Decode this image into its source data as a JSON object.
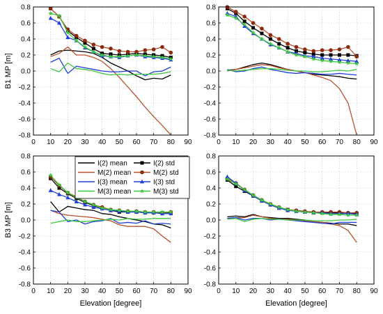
{
  "figure": {
    "legend": [
      {
        "label": "I(2)  mean",
        "color": "#000000",
        "marker": "none"
      },
      {
        "label": "I(2)  std",
        "color": "#000000",
        "marker": "square"
      },
      {
        "label": "M(2) mean",
        "color": "#b5502a",
        "marker": "none"
      },
      {
        "label": "M(2)  std",
        "color": "#8b2a0e",
        "marker": "circle"
      },
      {
        "label": "I(3)  mean",
        "color": "#1f3fd6",
        "marker": "none"
      },
      {
        "label": "I(3)  std",
        "color": "#1f3fd6",
        "marker": "triangle"
      },
      {
        "label": "M(3) mean",
        "color": "#3fc83f",
        "marker": "none"
      },
      {
        "label": "M(3)  std",
        "color": "#3fc83f",
        "marker": "star"
      }
    ],
    "colors": {
      "I2": "#000000",
      "M2": "#b5502a",
      "M2std": "#8b2a0e",
      "I3": "#1f3fd6",
      "M3": "#3fc83f",
      "grid": "#bfbfbf"
    }
  },
  "chart_data": [
    {
      "type": "line",
      "panel": "top-left",
      "ylabel": "B1 MP [m]",
      "xlabel": "",
      "xlim": [
        0,
        90
      ],
      "ylim": [
        -0.8,
        0.8
      ],
      "xticks": [
        0,
        10,
        20,
        30,
        40,
        50,
        60,
        70,
        80,
        90
      ],
      "yticks": [
        -0.8,
        -0.6,
        -0.4,
        -0.2,
        0.0,
        0.2,
        0.4,
        0.6,
        0.8
      ],
      "grid": true,
      "x": [
        10,
        15,
        20,
        25,
        30,
        35,
        40,
        45,
        50,
        55,
        60,
        65,
        70,
        75,
        80
      ],
      "series": [
        {
          "key": "I2_mean",
          "values": [
            0.2,
            0.25,
            0.26,
            0.25,
            0.24,
            0.22,
            0.17,
            0.1,
            0.05,
            0.0,
            -0.06,
            -0.11,
            -0.09,
            -0.1,
            -0.05
          ]
        },
        {
          "key": "M2_mean",
          "values": [
            0.18,
            0.22,
            0.3,
            0.2,
            0.2,
            0.17,
            0.12,
            0.03,
            -0.08,
            -0.2,
            -0.32,
            -0.45,
            -0.57,
            -0.68,
            -0.8
          ]
        },
        {
          "key": "I3_mean",
          "values": [
            0.11,
            0.16,
            -0.03,
            0.06,
            0.04,
            0.02,
            0.0,
            -0.01,
            -0.01,
            0.0,
            0.0,
            -0.06,
            -0.01,
            0.0,
            0.05
          ]
        },
        {
          "key": "M3_mean",
          "values": [
            0.03,
            -0.01,
            0.1,
            0.03,
            0.02,
            0.0,
            -0.03,
            -0.05,
            -0.04,
            -0.05,
            -0.04,
            -0.04,
            -0.04,
            -0.03,
            -0.01
          ]
        },
        {
          "key": "I2_std",
          "values": [
            0.78,
            0.68,
            0.5,
            0.42,
            0.35,
            0.28,
            0.22,
            0.21,
            0.2,
            0.21,
            0.22,
            0.21,
            0.2,
            0.19,
            0.17
          ]
        },
        {
          "key": "M2_std",
          "values": [
            0.78,
            0.68,
            0.52,
            0.44,
            0.38,
            0.33,
            0.3,
            0.28,
            0.25,
            0.24,
            0.24,
            0.26,
            0.27,
            0.3,
            0.23
          ]
        },
        {
          "key": "I3_std",
          "values": [
            0.66,
            0.6,
            0.42,
            0.38,
            0.29,
            0.24,
            0.19,
            0.18,
            0.17,
            0.19,
            0.2,
            0.18,
            0.17,
            0.16,
            0.14
          ]
        },
        {
          "key": "M3_std",
          "values": [
            0.72,
            0.69,
            0.48,
            0.38,
            0.3,
            0.24,
            0.2,
            0.18,
            0.18,
            0.19,
            0.2,
            0.19,
            0.18,
            0.17,
            0.15
          ]
        }
      ]
    },
    {
      "type": "line",
      "panel": "top-right",
      "ylabel": "",
      "xlabel": "",
      "xlim": [
        0,
        90
      ],
      "ylim": [
        -0.8,
        0.8
      ],
      "xticks": [
        0,
        10,
        20,
        30,
        40,
        50,
        60,
        70,
        80,
        90
      ],
      "yticks": [
        -0.8,
        -0.6,
        -0.4,
        -0.2,
        0.0,
        0.2,
        0.4,
        0.6,
        0.8
      ],
      "grid": true,
      "x": [
        5,
        10,
        15,
        20,
        25,
        30,
        35,
        40,
        45,
        50,
        55,
        60,
        65,
        70,
        75,
        80
      ],
      "series": [
        {
          "key": "I2_mean",
          "values": [
            0.01,
            0.02,
            0.05,
            0.08,
            0.1,
            0.08,
            0.05,
            0.02,
            0.0,
            -0.02,
            -0.04,
            -0.05,
            -0.06,
            -0.07,
            -0.09,
            -0.1
          ]
        },
        {
          "key": "M2_mean",
          "values": [
            0.0,
            0.02,
            0.04,
            0.06,
            0.08,
            0.07,
            0.04,
            0.02,
            0.0,
            -0.02,
            -0.05,
            -0.08,
            -0.12,
            -0.22,
            -0.4,
            -0.8
          ]
        },
        {
          "key": "I3_mean",
          "values": [
            0.02,
            -0.01,
            0.0,
            0.03,
            0.05,
            0.02,
            0.0,
            -0.02,
            -0.03,
            -0.02,
            -0.03,
            -0.04,
            -0.04,
            -0.03,
            -0.04,
            -0.05
          ]
        },
        {
          "key": "M3_mean",
          "values": [
            0.01,
            0.0,
            0.01,
            0.02,
            0.03,
            0.03,
            0.02,
            0.01,
            0.0,
            0.0,
            -0.01,
            -0.01,
            0.0,
            0.01,
            0.0,
            0.02
          ]
        },
        {
          "key": "I2_std",
          "values": [
            0.78,
            0.72,
            0.62,
            0.54,
            0.47,
            0.4,
            0.34,
            0.29,
            0.25,
            0.23,
            0.21,
            0.2,
            0.2,
            0.2,
            0.2,
            0.19
          ]
        },
        {
          "key": "M2_std",
          "values": [
            0.8,
            0.74,
            0.68,
            0.6,
            0.53,
            0.45,
            0.4,
            0.34,
            0.3,
            0.27,
            0.25,
            0.26,
            0.26,
            0.27,
            0.3,
            0.18
          ]
        },
        {
          "key": "I3_std",
          "values": [
            0.72,
            0.68,
            0.56,
            0.47,
            0.4,
            0.33,
            0.29,
            0.24,
            0.22,
            0.19,
            0.18,
            0.16,
            0.15,
            0.14,
            0.13,
            0.12
          ]
        },
        {
          "key": "M3_std",
          "values": [
            0.7,
            0.66,
            0.58,
            0.48,
            0.4,
            0.34,
            0.29,
            0.24,
            0.2,
            0.18,
            0.15,
            0.13,
            0.12,
            0.11,
            0.1,
            0.09
          ]
        }
      ]
    },
    {
      "type": "line",
      "panel": "bottom-left",
      "ylabel": "B3 MP [m]",
      "xlabel": "Elevation [degree]",
      "xlim": [
        0,
        90
      ],
      "ylim": [
        -0.8,
        0.8
      ],
      "xticks": [
        0,
        10,
        20,
        30,
        40,
        50,
        60,
        70,
        80,
        90
      ],
      "yticks": [
        -0.8,
        -0.6,
        -0.4,
        -0.2,
        0.0,
        0.2,
        0.4,
        0.6,
        0.8
      ],
      "grid": true,
      "x": [
        10,
        15,
        20,
        25,
        30,
        35,
        40,
        45,
        50,
        55,
        60,
        65,
        70,
        75,
        80
      ],
      "series": [
        {
          "key": "I2_mean",
          "values": [
            0.23,
            0.1,
            0.17,
            0.15,
            0.13,
            0.12,
            0.08,
            0.07,
            0.04,
            0.02,
            0.0,
            -0.02,
            -0.05,
            -0.06,
            -0.1
          ]
        },
        {
          "key": "M2_mean",
          "values": [
            0.12,
            0.08,
            0.06,
            0.05,
            0.04,
            0.03,
            0.01,
            -0.01,
            -0.06,
            -0.08,
            -0.08,
            -0.08,
            -0.11,
            -0.2,
            -0.28
          ]
        },
        {
          "key": "I3_mean",
          "values": [
            0.12,
            0.1,
            -0.02,
            0.0,
            -0.05,
            -0.02,
            -0.01,
            0.02,
            -0.04,
            -0.03,
            -0.04,
            -0.01,
            -0.05,
            -0.04,
            -0.05
          ]
        },
        {
          "key": "M3_mean",
          "values": [
            -0.04,
            -0.02,
            0.0,
            -0.02,
            -0.02,
            -0.01,
            0.0,
            0.01,
            0.0,
            0.02,
            0.01,
            0.01,
            0.02,
            0.02,
            0.02
          ]
        },
        {
          "key": "I2_std",
          "values": [
            0.52,
            0.4,
            0.33,
            0.27,
            0.22,
            0.18,
            0.15,
            0.12,
            0.1,
            0.1,
            0.1,
            0.09,
            0.09,
            0.09,
            0.09
          ]
        },
        {
          "key": "M2_std",
          "values": [
            0.54,
            0.43,
            0.34,
            0.29,
            0.23,
            0.19,
            0.16,
            0.13,
            0.12,
            0.11,
            0.11,
            0.1,
            0.1,
            0.09,
            0.1
          ]
        },
        {
          "key": "I3_std",
          "values": [
            0.37,
            0.32,
            0.28,
            0.23,
            0.19,
            0.16,
            0.14,
            0.12,
            0.11,
            0.1,
            0.1,
            0.09,
            0.09,
            0.08,
            0.08
          ]
        },
        {
          "key": "M3_std",
          "values": [
            0.56,
            0.44,
            0.34,
            0.28,
            0.23,
            0.19,
            0.15,
            0.13,
            0.12,
            0.11,
            0.11,
            0.1,
            0.1,
            0.1,
            0.1
          ]
        }
      ]
    },
    {
      "type": "line",
      "panel": "bottom-right",
      "ylabel": "",
      "xlabel": "Elevation [degree]",
      "xlim": [
        0,
        90
      ],
      "ylim": [
        -0.8,
        0.8
      ],
      "xticks": [
        0,
        10,
        20,
        30,
        40,
        50,
        60,
        70,
        80,
        90
      ],
      "yticks": [
        -0.8,
        -0.6,
        -0.4,
        -0.2,
        0.0,
        0.2,
        0.4,
        0.6,
        0.8
      ],
      "grid": true,
      "x": [
        5,
        10,
        15,
        20,
        25,
        30,
        35,
        40,
        45,
        50,
        55,
        60,
        65,
        70,
        75,
        80
      ],
      "series": [
        {
          "key": "I2_mean",
          "values": [
            0.04,
            0.05,
            0.04,
            0.07,
            0.04,
            0.03,
            0.02,
            0.02,
            0.01,
            0.0,
            -0.02,
            -0.03,
            -0.04,
            -0.05,
            -0.05,
            -0.07
          ]
        },
        {
          "key": "M2_mean",
          "values": [
            0.02,
            0.03,
            0.03,
            0.06,
            0.04,
            0.02,
            0.01,
            0.01,
            0.0,
            -0.01,
            -0.02,
            -0.03,
            -0.05,
            -0.07,
            -0.13,
            -0.28
          ]
        },
        {
          "key": "I3_mean",
          "values": [
            0.02,
            0.03,
            0.0,
            0.02,
            0.02,
            0.0,
            0.01,
            0.0,
            -0.01,
            -0.02,
            -0.03,
            -0.04,
            -0.05,
            -0.03,
            -0.03,
            -0.03
          ]
        },
        {
          "key": "M3_mean",
          "values": [
            0.01,
            0.02,
            -0.02,
            0.01,
            0.02,
            0.01,
            0.01,
            0.0,
            0.0,
            0.0,
            -0.01,
            -0.01,
            -0.01,
            0.0,
            0.0,
            0.01
          ]
        },
        {
          "key": "I2_std",
          "values": [
            0.5,
            0.42,
            0.36,
            0.3,
            0.24,
            0.19,
            0.15,
            0.13,
            0.11,
            0.1,
            0.09,
            0.09,
            0.09,
            0.09,
            0.08,
            0.08
          ]
        },
        {
          "key": "M2_std",
          "values": [
            0.52,
            0.46,
            0.38,
            0.31,
            0.25,
            0.2,
            0.16,
            0.13,
            0.12,
            0.11,
            0.1,
            0.1,
            0.1,
            0.1,
            0.09,
            0.09
          ]
        },
        {
          "key": "I3_std",
          "values": [
            0.54,
            0.46,
            0.37,
            0.3,
            0.24,
            0.19,
            0.15,
            0.12,
            0.11,
            0.1,
            0.09,
            0.09,
            0.08,
            0.08,
            0.08,
            0.07
          ]
        },
        {
          "key": "M3_std",
          "values": [
            0.51,
            0.45,
            0.38,
            0.31,
            0.25,
            0.2,
            0.16,
            0.13,
            0.11,
            0.1,
            0.09,
            0.08,
            0.07,
            0.07,
            0.06,
            0.06
          ]
        }
      ]
    }
  ]
}
